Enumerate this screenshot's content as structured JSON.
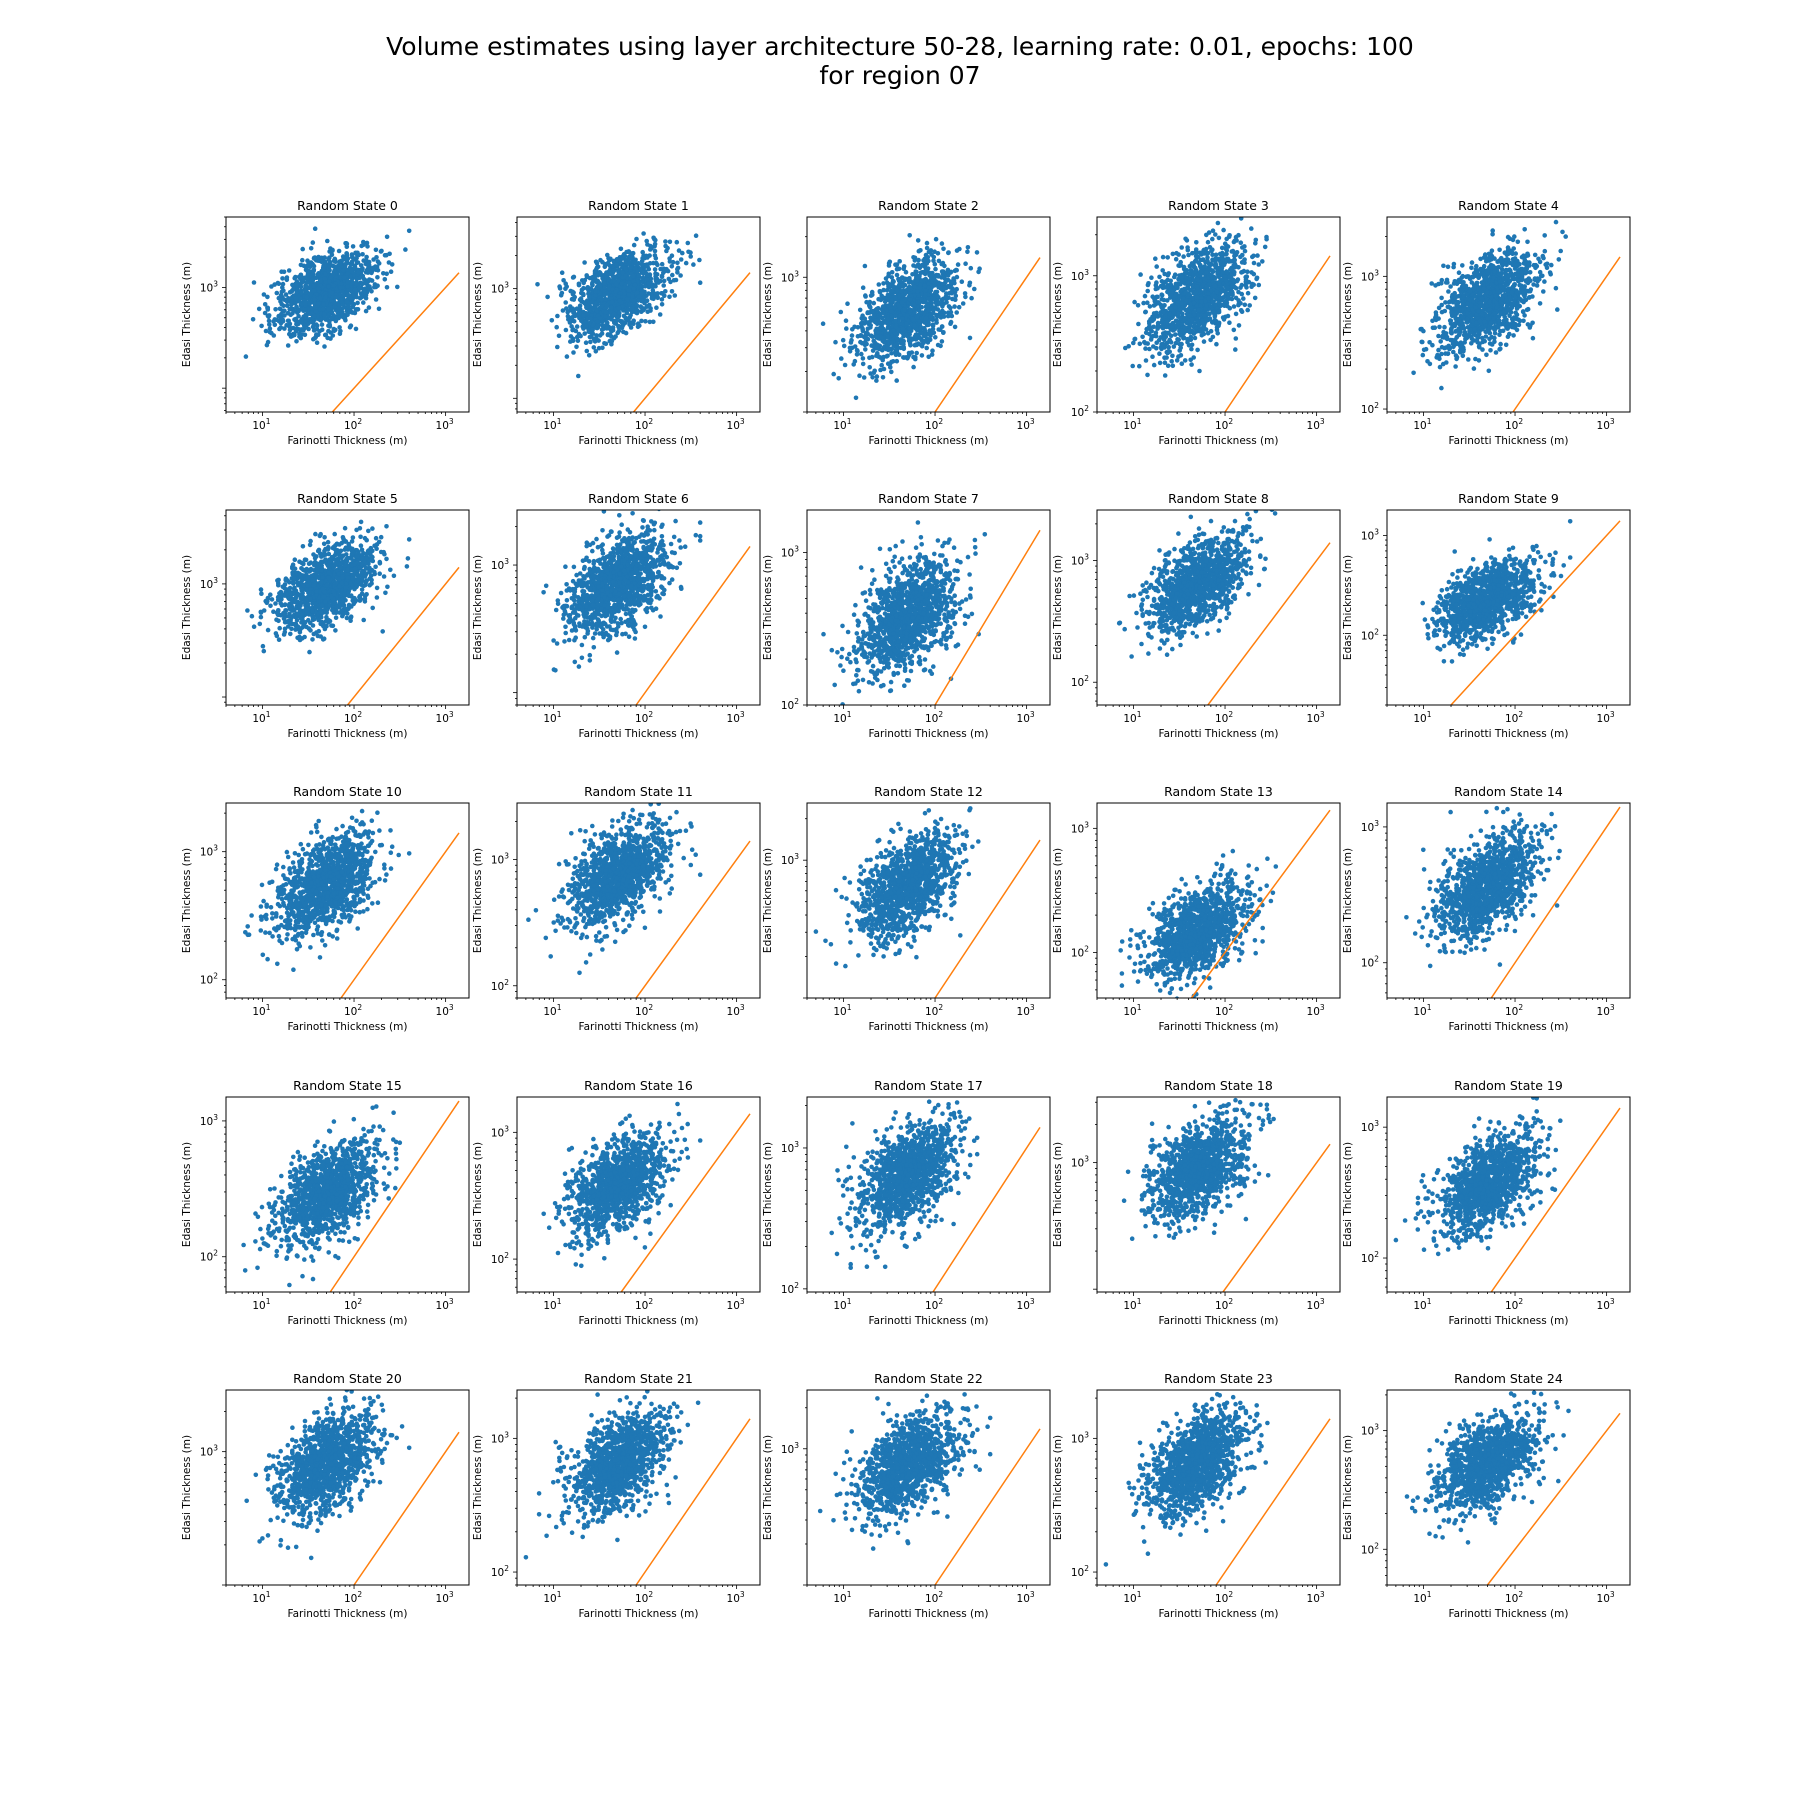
{
  "figure": {
    "title_line1": "Volume estimates using layer architecture 50-28, learning rate: 0.01, epochs: 100",
    "title_line2": "for region 07",
    "point_color": "#1f77b4",
    "line_color": "#ff7f0e"
  },
  "chart_data": {
    "type": "scatter",
    "xlabel": "Farinotti Thickness (m)",
    "ylabel": "Edasi Thickness (m)",
    "xscale": "log",
    "yscale": "log",
    "xlim": [
      4,
      1800
    ],
    "x_tick_labels": [
      {
        "value": 10,
        "base": "10",
        "exp": "1"
      },
      {
        "value": 100,
        "base": "10",
        "exp": "2"
      },
      {
        "value": 1000,
        "base": "10",
        "exp": "3"
      }
    ],
    "reference_line": "y = x",
    "point_distribution": {
      "x_center": 50,
      "x_spread": 0.27,
      "x_clip": [
        5,
        400
      ],
      "slope": 0.35
    },
    "panels": [
      {
        "title": "Random State 0",
        "ylim": [
          58,
          5000
        ],
        "y_center": 900,
        "y_spread": 0.18,
        "yticks": [
          {
            "value": 1000,
            "base": "10",
            "exp": "3"
          }
        ]
      },
      {
        "title": "Random State 1",
        "ylim": [
          75,
          4500
        ],
        "y_center": 900,
        "y_spread": 0.17,
        "yticks": [
          {
            "value": 1000,
            "base": "10",
            "exp": "3"
          }
        ]
      },
      {
        "title": "Random State 2",
        "ylim": [
          100,
          2800
        ],
        "y_center": 560,
        "y_spread": 0.17,
        "yticks": [
          {
            "value": 1000,
            "base": "10",
            "exp": "3"
          }
        ]
      },
      {
        "title": "Random State 3",
        "ylim": [
          100,
          2700
        ],
        "y_center": 700,
        "y_spread": 0.17,
        "yticks": [
          {
            "value": 100,
            "base": "10",
            "exp": "2"
          },
          {
            "value": 1000,
            "base": "10",
            "exp": "3"
          }
        ]
      },
      {
        "title": "Random State 4",
        "ylim": [
          95,
          2800
        ],
        "y_center": 650,
        "y_spread": 0.17,
        "yticks": [
          {
            "value": 100,
            "base": "10",
            "exp": "2"
          },
          {
            "value": 1000,
            "base": "10",
            "exp": "3"
          }
        ]
      },
      {
        "title": "Random State 5",
        "ylim": [
          85,
          4500
        ],
        "y_center": 950,
        "y_spread": 0.17,
        "yticks": [
          {
            "value": 1000,
            "base": "10",
            "exp": "3"
          }
        ]
      },
      {
        "title": "Random State 6",
        "ylim": [
          80,
          2700
        ],
        "y_center": 700,
        "y_spread": 0.17,
        "yticks": [
          {
            "value": 1000,
            "base": "10",
            "exp": "3"
          }
        ]
      },
      {
        "title": "Random State 7",
        "ylim": [
          100,
          1900
        ],
        "y_center": 380,
        "y_spread": 0.17,
        "yticks": [
          {
            "value": 100,
            "base": "10",
            "exp": "2"
          },
          {
            "value": 1000,
            "base": "10",
            "exp": "3"
          }
        ]
      },
      {
        "title": "Random State 8",
        "ylim": [
          65,
          2600
        ],
        "y_center": 650,
        "y_spread": 0.17,
        "yticks": [
          {
            "value": 100,
            "base": "10",
            "exp": "2"
          },
          {
            "value": 1000,
            "base": "10",
            "exp": "3"
          }
        ]
      },
      {
        "title": "Random State 9",
        "ylim": [
          20,
          1800
        ],
        "y_center": 220,
        "y_spread": 0.17,
        "yticks": [
          {
            "value": 100,
            "base": "10",
            "exp": "2"
          },
          {
            "value": 1000,
            "base": "10",
            "exp": "3"
          }
        ]
      },
      {
        "title": "Random State 10",
        "ylim": [
          72,
          2400
        ],
        "y_center": 550,
        "y_spread": 0.17,
        "yticks": [
          {
            "value": 100,
            "base": "10",
            "exp": "2"
          },
          {
            "value": 1000,
            "base": "10",
            "exp": "3"
          }
        ]
      },
      {
        "title": "Random State 11",
        "ylim": [
          80,
          2800
        ],
        "y_center": 750,
        "y_spread": 0.17,
        "yticks": [
          {
            "value": 100,
            "base": "10",
            "exp": "2"
          },
          {
            "value": 1000,
            "base": "10",
            "exp": "3"
          }
        ]
      },
      {
        "title": "Random State 12",
        "ylim": [
          100,
          2600
        ],
        "y_center": 650,
        "y_spread": 0.17,
        "yticks": [
          {
            "value": 1000,
            "base": "10",
            "exp": "3"
          }
        ]
      },
      {
        "title": "Random State 13",
        "ylim": [
          43,
          1600
        ],
        "y_center": 150,
        "y_spread": 0.17,
        "yticks": [
          {
            "value": 100,
            "base": "10",
            "exp": "2"
          },
          {
            "value": 1000,
            "base": "10",
            "exp": "3"
          }
        ]
      },
      {
        "title": "Random State 14",
        "ylim": [
          55,
          1500
        ],
        "y_center": 370,
        "y_spread": 0.17,
        "yticks": [
          {
            "value": 100,
            "base": "10",
            "exp": "2"
          },
          {
            "value": 1000,
            "base": "10",
            "exp": "3"
          }
        ]
      },
      {
        "title": "Random State 15",
        "ylim": [
          55,
          1500
        ],
        "y_center": 300,
        "y_spread": 0.17,
        "yticks": [
          {
            "value": 100,
            "base": "10",
            "exp": "2"
          },
          {
            "value": 1000,
            "base": "10",
            "exp": "3"
          }
        ]
      },
      {
        "title": "Random State 16",
        "ylim": [
          55,
          1900
        ],
        "y_center": 380,
        "y_spread": 0.17,
        "yticks": [
          {
            "value": 100,
            "base": "10",
            "exp": "2"
          },
          {
            "value": 1000,
            "base": "10",
            "exp": "3"
          }
        ]
      },
      {
        "title": "Random State 17",
        "ylim": [
          95,
          2300
        ],
        "y_center": 630,
        "y_spread": 0.17,
        "yticks": [
          {
            "value": 100,
            "base": "10",
            "exp": "2"
          },
          {
            "value": 1000,
            "base": "10",
            "exp": "3"
          }
        ]
      },
      {
        "title": "Random State 18",
        "ylim": [
          95,
          3300
        ],
        "y_center": 900,
        "y_spread": 0.17,
        "yticks": [
          {
            "value": 1000,
            "base": "10",
            "exp": "3"
          }
        ]
      },
      {
        "title": "Random State 19",
        "ylim": [
          55,
          1700
        ],
        "y_center": 380,
        "y_spread": 0.17,
        "yticks": [
          {
            "value": 100,
            "base": "10",
            "exp": "2"
          },
          {
            "value": 1000,
            "base": "10",
            "exp": "3"
          }
        ]
      },
      {
        "title": "Random State 20",
        "ylim": [
          100,
          2900
        ],
        "y_center": 800,
        "y_spread": 0.17,
        "yticks": [
          {
            "value": 1000,
            "base": "10",
            "exp": "3"
          }
        ]
      },
      {
        "title": "Random State 21",
        "ylim": [
          80,
          2300
        ],
        "y_center": 650,
        "y_spread": 0.17,
        "yticks": [
          {
            "value": 100,
            "base": "10",
            "exp": "2"
          },
          {
            "value": 1000,
            "base": "10",
            "exp": "3"
          }
        ]
      },
      {
        "title": "Random State 22",
        "ylim": [
          100,
          2700
        ],
        "y_center": 750,
        "y_spread": 0.17,
        "yticks": [
          {
            "value": 1000,
            "base": "10",
            "exp": "3"
          }
        ]
      },
      {
        "title": "Random State 23",
        "ylim": [
          80,
          2300
        ],
        "y_center": 650,
        "y_spread": 0.17,
        "yticks": [
          {
            "value": 100,
            "base": "10",
            "exp": "2"
          },
          {
            "value": 1000,
            "base": "10",
            "exp": "3"
          }
        ]
      },
      {
        "title": "Random State 24",
        "ylim": [
          50,
          2200
        ],
        "y_center": 530,
        "y_spread": 0.17,
        "yticks": [
          {
            "value": 100,
            "base": "10",
            "exp": "2"
          },
          {
            "value": 1000,
            "base": "10",
            "exp": "3"
          }
        ]
      }
    ]
  }
}
